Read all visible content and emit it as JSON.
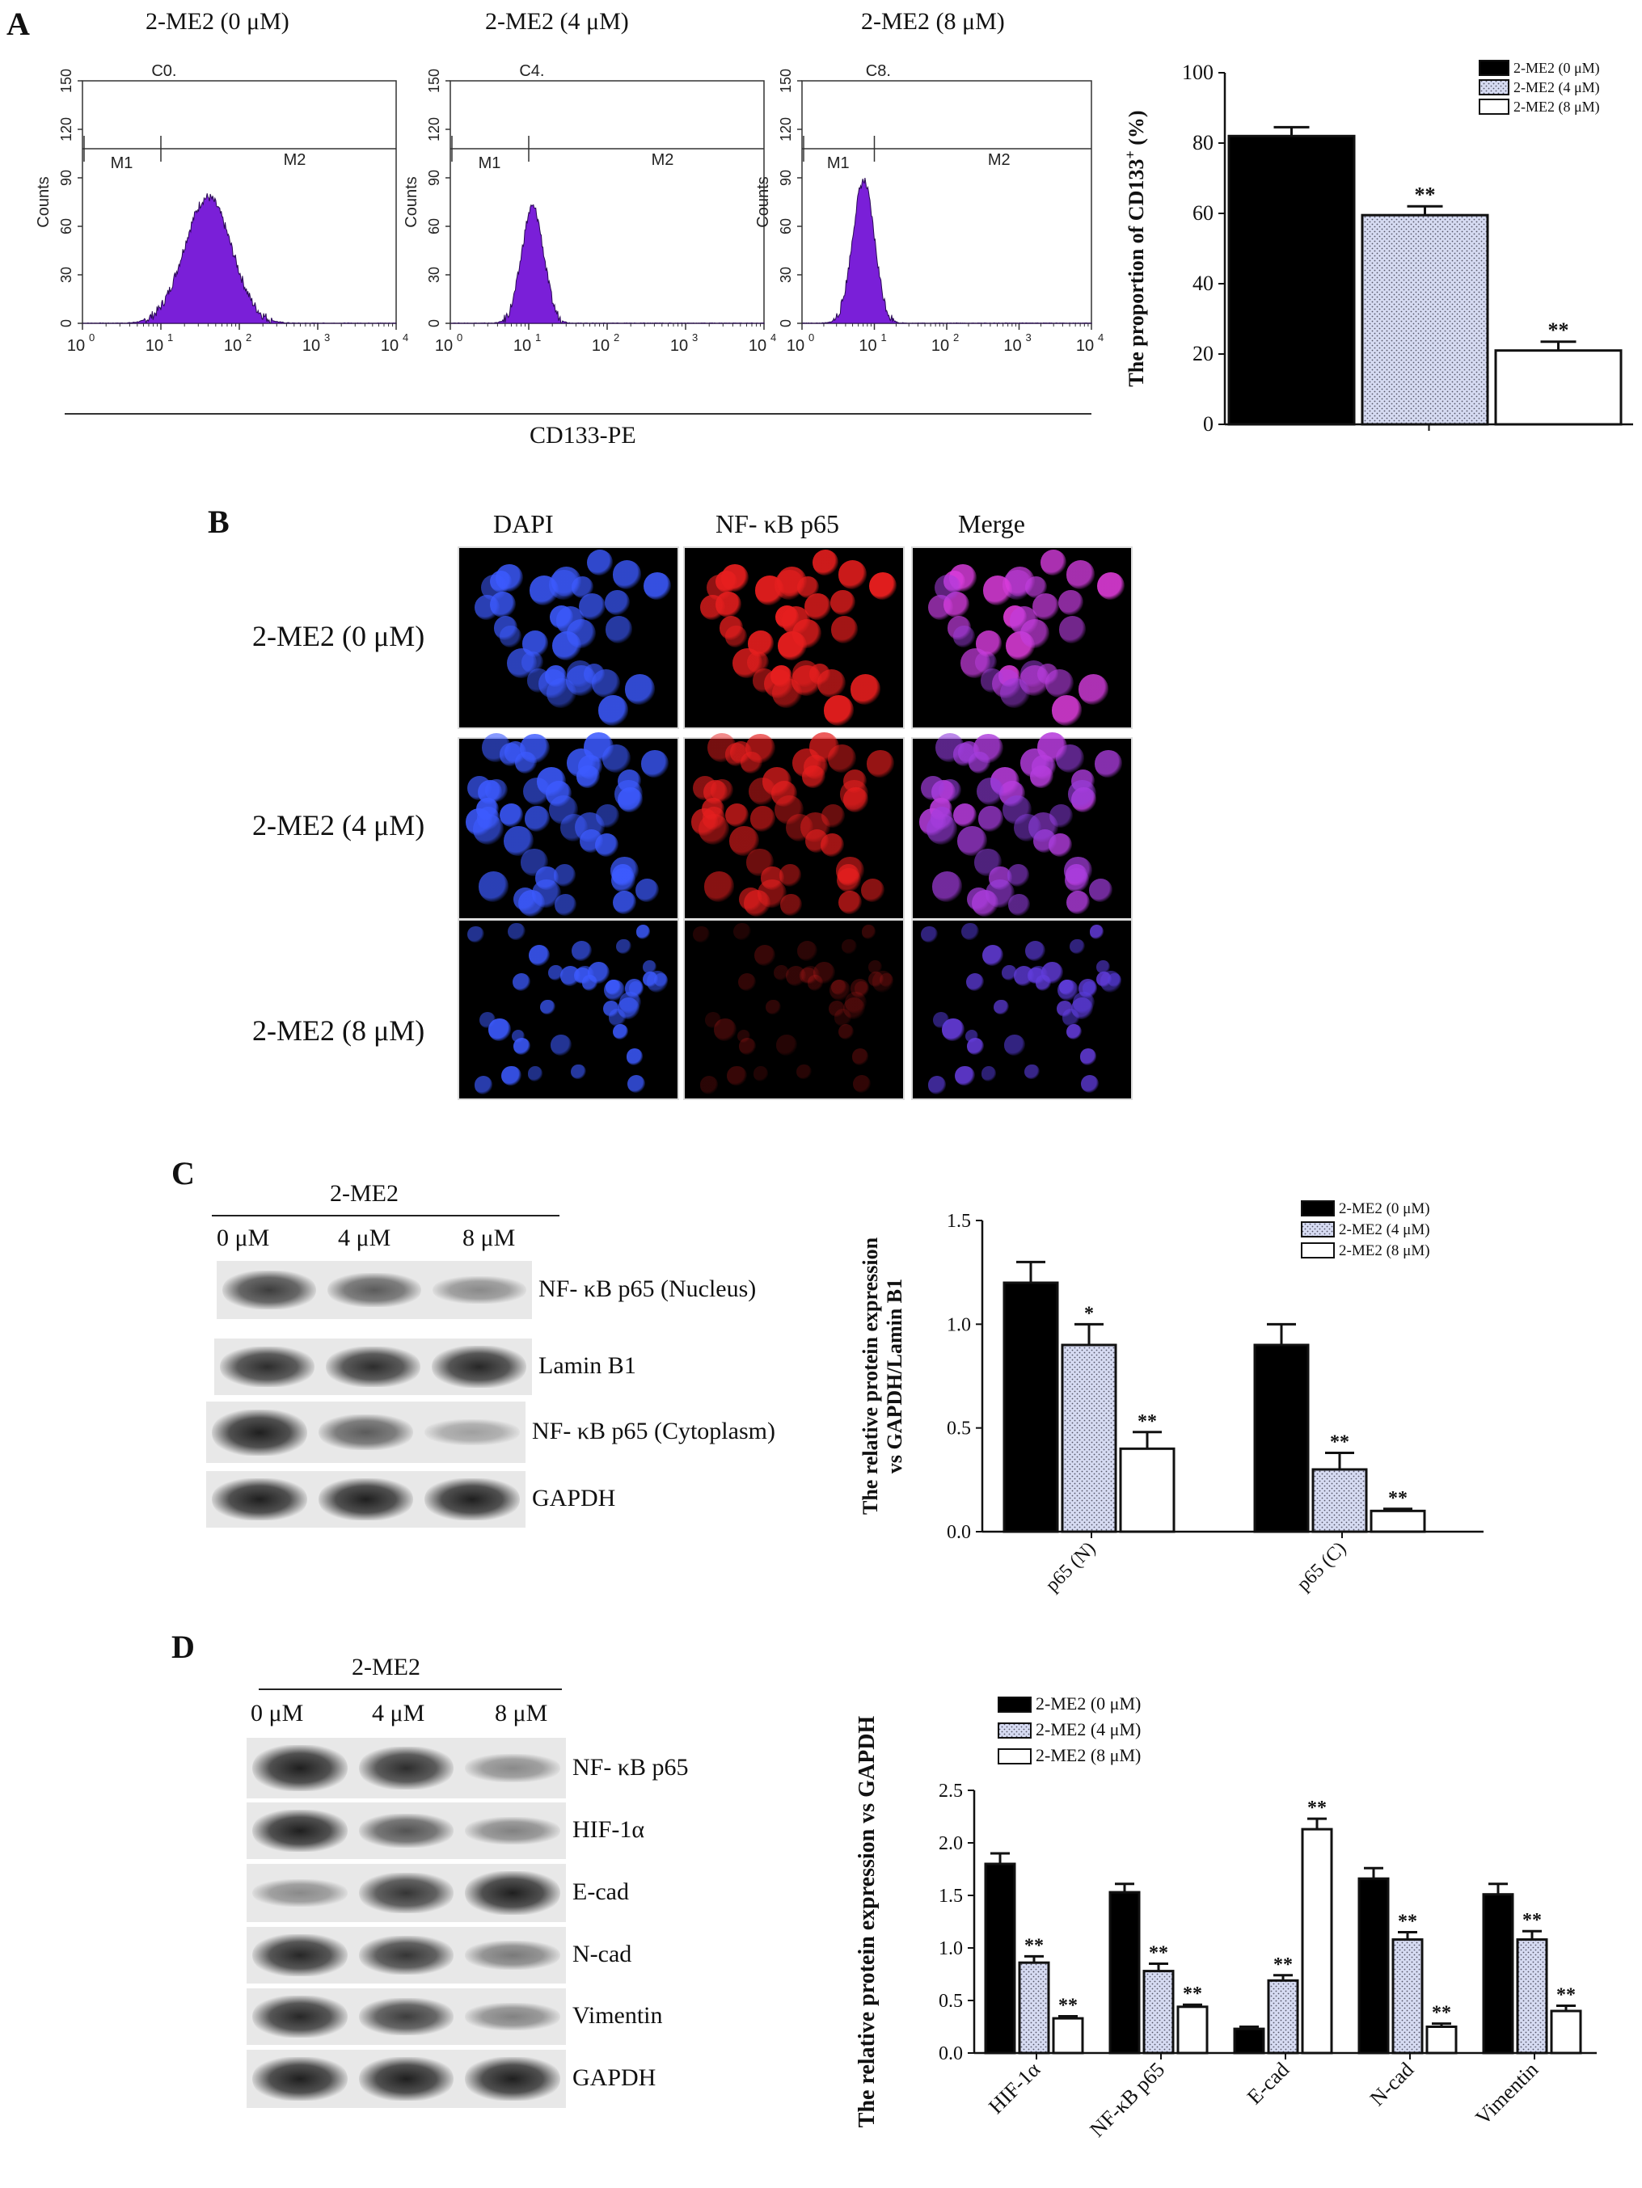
{
  "panels": {
    "A": {
      "letter": "A",
      "conditions": [
        "2-ME2  (0 μM)",
        "2-ME2  (4 μM)",
        "2-ME2  (8 μM)"
      ],
      "histogram_titles": [
        "C0.",
        "C4.",
        "C8."
      ],
      "marker_labels": [
        "M1",
        "M2"
      ],
      "y_axis_label": "Counts",
      "x_axis_label": "CD133-PE",
      "y_ticks_hist": [
        [
          "0",
          "30",
          "60",
          "90",
          "120",
          "150"
        ],
        [
          "0",
          "30",
          "60",
          "90",
          "120",
          "150"
        ],
        [
          "0",
          "30",
          "60",
          "90",
          "120",
          "150"
        ]
      ],
      "x_ticks_hist": [
        "10",
        "10",
        "10",
        "10",
        "10"
      ],
      "x_tick_exponents": [
        "0",
        "1",
        "2",
        "3",
        "4"
      ]
    },
    "B": {
      "letter": "B",
      "columns": [
        "DAPI",
        "NF- κB p65",
        "Merge"
      ],
      "rows": [
        "2-ME2 (0 μM)",
        "2-ME2 (4 μM)",
        "2-ME2 (8 μM)"
      ]
    },
    "C": {
      "letter": "C",
      "treatment": "2-ME2",
      "lanes": [
        "0 μM",
        "4 μM",
        "8 μM"
      ],
      "blots": [
        "NF- κB  p65 (Nucleus)",
        "Lamin B1",
        "NF- κB  p65 (Cytoplasm)",
        "GAPDH"
      ]
    },
    "D": {
      "letter": "D",
      "treatment": "2-ME2",
      "lanes": [
        "0 μM",
        "4 μM",
        "8 μM"
      ],
      "blots": [
        "NF- κB  p65",
        "HIF-1α",
        "E-cad",
        "N-cad",
        "Vimentin",
        "GAPDH"
      ]
    }
  },
  "colors": {
    "bar_0": "#000000",
    "bar_4": "#d6dbf2",
    "bar_8": "#ffffff",
    "histogram_fill": "#7a1fd8",
    "dapi": "#2a49ff",
    "p65": "#e01818"
  },
  "chart_data": [
    {
      "type": "bar",
      "panel": "A",
      "categories": [
        ""
      ],
      "series": [
        {
          "name": "2-ME2 (0 μM)",
          "values": [
            82
          ],
          "errors": [
            2.5
          ],
          "sig": [
            ""
          ]
        },
        {
          "name": "2-ME2 (4 μM)",
          "values": [
            59.5
          ],
          "errors": [
            2.5
          ],
          "sig": [
            "**"
          ]
        },
        {
          "name": "2-ME2 (8 μM)",
          "values": [
            21
          ],
          "errors": [
            2.5
          ],
          "sig": [
            "**"
          ]
        }
      ],
      "ylabel": "The proportion of CD133",
      "ylabel_sup": "+",
      "ylabel_suffix": " (%)",
      "ylim": [
        0,
        100
      ],
      "yticks": [
        "0",
        "20",
        "40",
        "60",
        "80",
        "100"
      ],
      "legend": "top-right"
    },
    {
      "type": "bar",
      "panel": "C",
      "categories": [
        "p65 (N)",
        "p65 (C)"
      ],
      "series": [
        {
          "name": "2-ME2 (0 μM)",
          "values": [
            1.2,
            0.9
          ],
          "errors": [
            0.1,
            0.1
          ],
          "sig": [
            "",
            ""
          ]
        },
        {
          "name": "2-ME2 (4 μM)",
          "values": [
            0.9,
            0.3
          ],
          "errors": [
            0.1,
            0.08
          ],
          "sig": [
            "*",
            "**"
          ]
        },
        {
          "name": "2-ME2 (8 μM)",
          "values": [
            0.4,
            0.1
          ],
          "errors": [
            0.08,
            0.01
          ],
          "sig": [
            "**",
            "**"
          ]
        }
      ],
      "ylabel": "The relative protein expression",
      "ylabel2": "vs GAPDH/Lamin B1",
      "ylim": [
        0,
        1.5
      ],
      "yticks": [
        "0.0",
        "0.5",
        "1.0",
        "1.5"
      ],
      "legend": "top-right"
    },
    {
      "type": "bar",
      "panel": "D",
      "categories": [
        "HIF-1α",
        "NF-κB p65",
        "E-cad",
        "N-cad",
        "Vimentin"
      ],
      "series": [
        {
          "name": "2-ME2 (0 μM)",
          "values": [
            1.8,
            1.53,
            0.23,
            1.66,
            1.51
          ],
          "errors": [
            0.1,
            0.08,
            0.02,
            0.1,
            0.1
          ],
          "sig": [
            "",
            "",
            "",
            "",
            ""
          ]
        },
        {
          "name": "2-ME2 (4 μM)",
          "values": [
            0.86,
            0.78,
            0.69,
            1.08,
            1.08
          ],
          "errors": [
            0.06,
            0.07,
            0.05,
            0.07,
            0.08
          ],
          "sig": [
            "**",
            "**",
            "**",
            "**",
            "**"
          ]
        },
        {
          "name": "2-ME2 (8 μM)",
          "values": [
            0.33,
            0.44,
            2.13,
            0.25,
            0.4
          ],
          "errors": [
            0.02,
            0.02,
            0.1,
            0.03,
            0.05
          ],
          "sig": [
            "**",
            "**",
            "**",
            "**",
            "**"
          ]
        }
      ],
      "ylabel": "The relative protein expression vs GAPDH",
      "ylim": [
        0,
        2.5
      ],
      "yticks": [
        "0.0",
        "0.5",
        "1.0",
        "1.5",
        "2.0",
        "2.5"
      ],
      "legend": "top-left"
    }
  ]
}
